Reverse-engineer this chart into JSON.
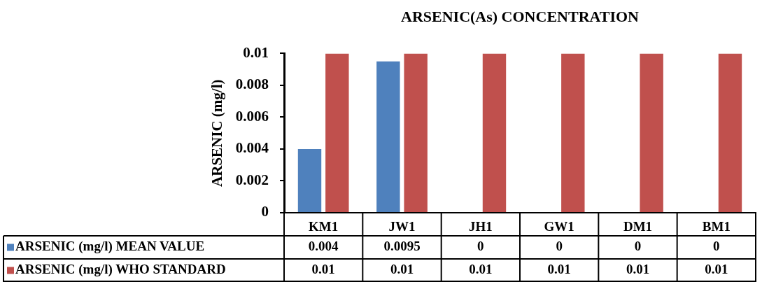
{
  "chart_data": {
    "type": "bar",
    "title": "ARSENIC(As) CONCENTRATION",
    "ylabel": "ARSENIC (mg/l)",
    "categories": [
      "KM1",
      "JW1",
      "JH1",
      "GW1",
      "DM1",
      "BM1"
    ],
    "series": [
      {
        "name": "ARSENIC (mg/l) MEAN VALUE",
        "color": "#4f81bd",
        "values": [
          0.004,
          0.0095,
          0,
          0,
          0,
          0
        ]
      },
      {
        "name": "ARSENIC (mg/l) WHO STANDARD",
        "color": "#c0504d",
        "values": [
          0.01,
          0.01,
          0.01,
          0.01,
          0.01,
          0.01
        ]
      }
    ],
    "ylim": [
      0,
      0.01
    ],
    "yticks": [
      0,
      0.002,
      0.004,
      0.006,
      0.008,
      0.01
    ],
    "grid": false,
    "legend": "bottom left",
    "data_labels": true
  }
}
